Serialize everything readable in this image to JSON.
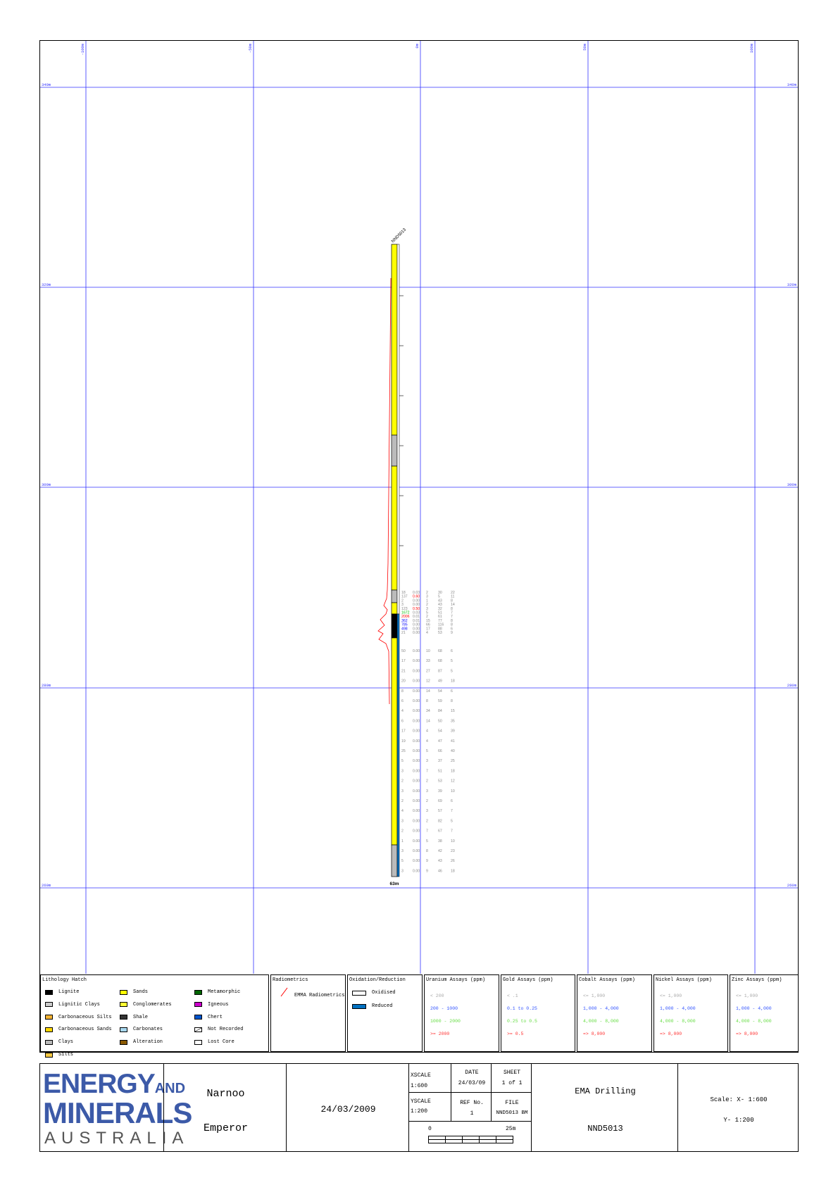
{
  "grid": {
    "x_labels": [
      "-100m",
      "-50m",
      "0m",
      "50m",
      "100m"
    ],
    "y_labels": [
      "340m",
      "320m",
      "300m",
      "280m",
      "260m"
    ]
  },
  "hole": {
    "id": "NND5013",
    "depth_label": "63m"
  },
  "assays": [
    {
      "u": "18",
      "au": "0.03",
      "co": "2",
      "ni": "30",
      "zn": "22",
      "u_color": "#888888",
      "au_color": "#888888"
    },
    {
      "u": "137",
      "au": "0.60",
      "co": "3",
      "ni": "5",
      "zn": "11",
      "u_color": "#888888",
      "au_color": "#ff0000"
    },
    {
      "u": "2",
      "au": "0.00",
      "co": "1",
      "ni": "43",
      "zn": "8",
      "u_color": "#888888",
      "au_color": "#888888"
    },
    {
      "u": "3",
      "au": "0.00",
      "co": "2",
      "ni": "43",
      "zn": "14",
      "u_color": "#888888",
      "au_color": "#888888"
    },
    {
      "u": "123",
      "au": "0.50",
      "co": "3",
      "ni": "32",
      "zn": "8",
      "u_color": "#888888",
      "au_color": "#ff0000"
    },
    {
      "u": "1672",
      "au": "0.03",
      "co": "5",
      "ni": "51",
      "zn": "7",
      "u_color": "#00c000",
      "au_color": "#888888"
    },
    {
      "u": "2006",
      "au": "0.01",
      "co": "2",
      "ni": "61",
      "zn": "7",
      "u_color": "#ff0000",
      "au_color": "#888888"
    },
    {
      "u": "362",
      "au": "0.01",
      "co": "15",
      "ni": "77",
      "zn": "8",
      "u_color": "#0000ff",
      "au_color": "#888888"
    },
    {
      "u": "785",
      "au": "0.00",
      "co": "66",
      "ni": "116",
      "zn": "8",
      "u_color": "#0000ff",
      "au_color": "#888888"
    },
    {
      "u": "498",
      "au": "0.00",
      "co": "17",
      "ni": "88",
      "zn": "6",
      "u_color": "#0000ff",
      "au_color": "#888888"
    },
    {
      "u": "21",
      "au": "0.00",
      "co": "4",
      "ni": "53",
      "zn": "9",
      "u_color": "#888888",
      "au_color": "#888888"
    },
    {
      "u": "50",
      "au": "0.00",
      "co": "10",
      "ni": "68",
      "zn": "6",
      "u_color": "#888888",
      "au_color": "#888888"
    },
    {
      "u": "17",
      "au": "0.00",
      "co": "33",
      "ni": "68",
      "zn": "5",
      "u_color": "#888888",
      "au_color": "#888888"
    },
    {
      "u": "21",
      "au": "0.00",
      "co": "27",
      "ni": "87",
      "zn": "5",
      "u_color": "#888888",
      "au_color": "#888888"
    },
    {
      "u": "20",
      "au": "0.00",
      "co": "12",
      "ni": "49",
      "zn": "18",
      "u_color": "#888888",
      "au_color": "#888888"
    },
    {
      "u": "8",
      "au": "0.00",
      "co": "14",
      "ni": "54",
      "zn": "6",
      "u_color": "#888888",
      "au_color": "#888888"
    },
    {
      "u": "6",
      "au": "0.00",
      "co": "8",
      "ni": "59",
      "zn": "8",
      "u_color": "#888888",
      "au_color": "#888888"
    },
    {
      "u": "4",
      "au": "0.00",
      "co": "34",
      "ni": "84",
      "zn": "15",
      "u_color": "#888888",
      "au_color": "#888888"
    },
    {
      "u": "6",
      "au": "0.00",
      "co": "14",
      "ni": "50",
      "zn": "35",
      "u_color": "#888888",
      "au_color": "#888888"
    },
    {
      "u": "17",
      "au": "0.00",
      "co": "4",
      "ni": "54",
      "zn": "39",
      "u_color": "#888888",
      "au_color": "#888888"
    },
    {
      "u": "19",
      "au": "0.00",
      "co": "4",
      "ni": "47",
      "zn": "41",
      "u_color": "#888888",
      "au_color": "#888888"
    },
    {
      "u": "25",
      "au": "0.00",
      "co": "5",
      "ni": "66",
      "zn": "40",
      "u_color": "#888888",
      "au_color": "#888888"
    },
    {
      "u": "5",
      "au": "0.00",
      "co": "3",
      "ni": "37",
      "zn": "25",
      "u_color": "#888888",
      "au_color": "#888888"
    },
    {
      "u": "3",
      "au": "0.00",
      "co": "7",
      "ni": "51",
      "zn": "18",
      "u_color": "#888888",
      "au_color": "#888888"
    },
    {
      "u": "2",
      "au": "0.00",
      "co": "2",
      "ni": "53",
      "zn": "12",
      "u_color": "#888888",
      "au_color": "#888888"
    },
    {
      "u": "3",
      "au": "0.00",
      "co": "3",
      "ni": "39",
      "zn": "10",
      "u_color": "#888888",
      "au_color": "#888888"
    },
    {
      "u": "2",
      "au": "0.00",
      "co": "2",
      "ni": "69",
      "zn": "6",
      "u_color": "#888888",
      "au_color": "#888888"
    },
    {
      "u": "4",
      "au": "0.00",
      "co": "3",
      "ni": "57",
      "zn": "7",
      "u_color": "#888888",
      "au_color": "#888888"
    },
    {
      "u": "3",
      "au": "0.00",
      "co": "2",
      "ni": "82",
      "zn": "5",
      "u_color": "#888888",
      "au_color": "#888888"
    },
    {
      "u": "2",
      "au": "0.00",
      "co": "7",
      "ni": "67",
      "zn": "7",
      "u_color": "#888888",
      "au_color": "#888888"
    },
    {
      "u": "1",
      "au": "0.00",
      "co": "5",
      "ni": "38",
      "zn": "10",
      "u_color": "#888888",
      "au_color": "#888888"
    },
    {
      "u": "3",
      "au": "0.00",
      "co": "8",
      "ni": "42",
      "zn": "23",
      "u_color": "#888888",
      "au_color": "#888888"
    },
    {
      "u": "5",
      "au": "0.00",
      "co": "9",
      "ni": "43",
      "zn": "26",
      "u_color": "#888888",
      "au_color": "#888888"
    },
    {
      "u": "3",
      "au": "0.00",
      "co": "9",
      "ni": "46",
      "zn": "18",
      "u_color": "#888888",
      "au_color": "#888888"
    }
  ],
  "legend": {
    "lithology": {
      "title": "Lithology Hatch",
      "items": [
        {
          "label": "Lignite",
          "color": "#000000"
        },
        {
          "label": "Lignitic Clays",
          "color": "#cccccc"
        },
        {
          "label": "Carbonaceous Silts",
          "color": "#f2b233"
        },
        {
          "label": "Carbonaceous Sands",
          "color": "#ffd700"
        },
        {
          "label": "Clays",
          "color": "#bbbbbb"
        },
        {
          "label": "Silts",
          "color": "#f5c842"
        },
        {
          "label": "Sands",
          "color": "#ffff00"
        },
        {
          "label": "Conglomerates",
          "color": "#ffff33"
        },
        {
          "label": "Shale",
          "color": "#333333"
        },
        {
          "label": "Carbonates",
          "color": "#a8d8f0"
        },
        {
          "label": "Alteration",
          "color": "#8b5a00"
        },
        {
          "label": "Metamorphic",
          "color": "#006600"
        },
        {
          "label": "Igneous",
          "color": "#cc00cc"
        },
        {
          "label": "Chert",
          "color": "#0055cc"
        },
        {
          "label": "Not Recorded",
          "color": "#ffffff"
        },
        {
          "label": "Lost Core",
          "color": "#ffffff"
        }
      ]
    },
    "radiometrics": {
      "title": "Radiometrics",
      "item": "EMMA Radiometrics"
    },
    "oxidation": {
      "title": "Oxidation/Reduction",
      "items": [
        {
          "label": "Oxidised",
          "color": "#ffffff"
        },
        {
          "label": "Reduced",
          "color": "#0070c0"
        }
      ]
    },
    "uranium": {
      "title": "Uranium Assays (ppm)",
      "rows": [
        {
          "label": "< 200",
          "color": "#aaaaaa"
        },
        {
          "label": "200 - 1000",
          "color": "#3355ff"
        },
        {
          "label": "1000 - 2000",
          "color": "#66dd44"
        },
        {
          "label": ">= 2000",
          "color": "#ff3333"
        }
      ]
    },
    "gold": {
      "title": "Gold Assays (ppm)",
      "rows": [
        {
          "label": "< .1",
          "color": "#aaaaaa"
        },
        {
          "label": "0.1 to 0.25",
          "color": "#3355ff"
        },
        {
          "label": "0.25 to 0.5",
          "color": "#66dd44"
        },
        {
          "label": ">= 0.5",
          "color": "#ff3333"
        }
      ]
    },
    "cobalt": {
      "title": "Cobalt Assays (ppm)",
      "rows": [
        {
          "label": "<= 1,000",
          "color": "#aaaaaa"
        },
        {
          "label": "1,000 - 4,000",
          "color": "#3355ff"
        },
        {
          "label": "4,000 - 8,000",
          "color": "#66dd44"
        },
        {
          "label": "=> 8,000",
          "color": "#ff3333"
        }
      ]
    },
    "nickel": {
      "title": "Nickel Assays (ppm)",
      "rows": [
        {
          "label": "<= 1,000",
          "color": "#aaaaaa"
        },
        {
          "label": "1,000 - 4,000",
          "color": "#3355ff"
        },
        {
          "label": "4,000 - 8,000",
          "color": "#66dd44"
        },
        {
          "label": "=> 8,000",
          "color": "#ff3333"
        }
      ]
    },
    "zinc": {
      "title": "Zinc Assays (ppm)",
      "rows": [
        {
          "label": "<= 1,000",
          "color": "#aaaaaa"
        },
        {
          "label": "1,000 - 4,000",
          "color": "#3355ff"
        },
        {
          "label": "4,000 - 8,000",
          "color": "#66dd44"
        },
        {
          "label": "=> 8,000",
          "color": "#ff3333"
        }
      ]
    }
  },
  "title_block": {
    "logo_line1": "ENERGY",
    "logo_and": "AND",
    "logo_line2": "MINERALS",
    "logo_line3": "AUSTRALIA",
    "project": "Narnoo",
    "prospect": "Emperor",
    "date_long": "24/03/2009",
    "xscale_label": "XSCALE",
    "xscale_value": "1:600",
    "yscale_label": "YSCALE",
    "yscale_value": "1:200",
    "date_label": "DATE",
    "date_value": "24/03/09",
    "sheet_label": "SHEET",
    "sheet_value": "1 of 1",
    "ref_label": "REF No.",
    "ref_value": "1",
    "file_label": "FILE",
    "file_value": "NND5013 BM",
    "scalebar_start": "0",
    "scalebar_end": "25m",
    "company": "EMA Drilling",
    "hole_id": "NND5013",
    "scale_x": "Scale: X- 1:600",
    "scale_y": "Y- 1:200"
  }
}
